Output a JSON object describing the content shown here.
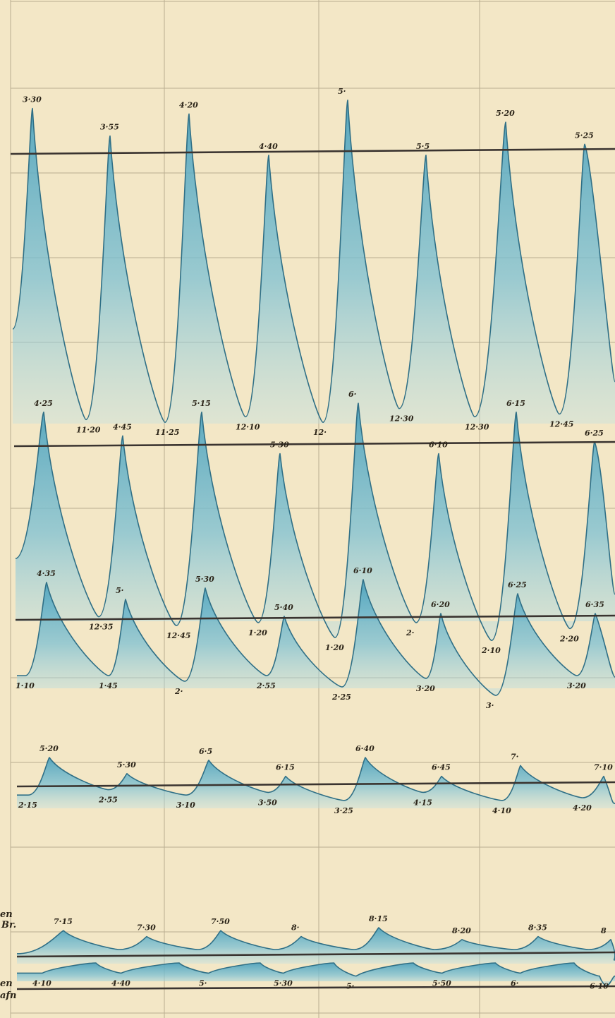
{
  "chart_data": {
    "type": "area",
    "title": "",
    "colors": {
      "paper": "#f3e7c6",
      "tide_fill": "#6fb7cb",
      "tide_edge": "#2f6f86",
      "datum_line": "#3a3430",
      "grid": "#b9ad90"
    },
    "grid": true,
    "time_unit": "h:mm (clock time of high and low water)",
    "x_range_hours": [
      0,
      8
    ],
    "series": [
      {
        "baseline_level": 0,
        "points": [
          {
            "kind": "high",
            "label": "3·30",
            "level": 0.16
          },
          {
            "kind": "low",
            "label": "11·20",
            "level": -0.97
          },
          {
            "kind": "high",
            "label": "3·55",
            "level": 0.06
          },
          {
            "kind": "low",
            "label": "11·25",
            "level": -0.98
          },
          {
            "kind": "high",
            "label": "4·20",
            "level": 0.14
          },
          {
            "kind": "low",
            "label": "12·10",
            "level": -0.96
          },
          {
            "kind": "high",
            "label": "4·40",
            "level": -0.01
          },
          {
            "kind": "low",
            "label": "12·",
            "level": -0.98
          },
          {
            "kind": "high",
            "label": "5·",
            "level": 0.19
          },
          {
            "kind": "low",
            "label": "12·30",
            "level": -0.93
          },
          {
            "kind": "high",
            "label": "5·5",
            "level": -0.01
          },
          {
            "kind": "low",
            "label": "12·30",
            "level": -0.96
          },
          {
            "kind": "high",
            "label": "5·20",
            "level": 0.11
          },
          {
            "kind": "low",
            "label": "12·45",
            "level": -0.95
          },
          {
            "kind": "high",
            "label": "5·25",
            "level": 0.03
          }
        ]
      },
      {
        "baseline_level": 0,
        "points": [
          {
            "kind": "high",
            "label": "4·25",
            "level": 0.11
          },
          {
            "kind": "low",
            "label": "12·35",
            "level": -0.58
          },
          {
            "kind": "high",
            "label": "4·45",
            "level": 0.03
          },
          {
            "kind": "low",
            "label": "12·45",
            "level": -0.61
          },
          {
            "kind": "high",
            "label": "5·15",
            "level": 0.11
          },
          {
            "kind": "low",
            "label": "1·20",
            "level": -0.6
          },
          {
            "kind": "high",
            "label": "5·30",
            "level": -0.03
          },
          {
            "kind": "low",
            "label": "1·20",
            "level": -0.65
          },
          {
            "kind": "high",
            "label": "6·",
            "level": 0.14
          },
          {
            "kind": "low",
            "label": "2·",
            "level": -0.6
          },
          {
            "kind": "high",
            "label": "6·10",
            "level": -0.03
          },
          {
            "kind": "low",
            "label": "2·10",
            "level": -0.66
          },
          {
            "kind": "high",
            "label": "6·15",
            "level": 0.11
          },
          {
            "kind": "low",
            "label": "2·20",
            "level": -0.62
          },
          {
            "kind": "high",
            "label": "6·25",
            "level": 0.01
          }
        ]
      },
      {
        "baseline_level": 0,
        "points": [
          {
            "kind": "low",
            "label": "1·10",
            "level": -0.2
          },
          {
            "kind": "high",
            "label": "4·35",
            "level": 0.13
          },
          {
            "kind": "low",
            "label": "1·45",
            "level": -0.2
          },
          {
            "kind": "high",
            "label": "5·",
            "level": 0.07
          },
          {
            "kind": "low",
            "label": "2·",
            "level": -0.22
          },
          {
            "kind": "high",
            "label": "5·30",
            "level": 0.11
          },
          {
            "kind": "low",
            "label": "2·55",
            "level": -0.2
          },
          {
            "kind": "high",
            "label": "5·40",
            "level": 0.01
          },
          {
            "kind": "low",
            "label": "2·25",
            "level": -0.24
          },
          {
            "kind": "high",
            "label": "6·10",
            "level": 0.14
          },
          {
            "kind": "low",
            "label": "3·20",
            "level": -0.21
          },
          {
            "kind": "high",
            "label": "6·20",
            "level": 0.02
          },
          {
            "kind": "low",
            "label": "3·",
            "level": -0.27
          },
          {
            "kind": "high",
            "label": "6·25",
            "level": 0.09
          },
          {
            "kind": "low",
            "label": "3·20",
            "level": -0.2
          },
          {
            "kind": "high",
            "label": "6·35",
            "level": 0.02
          }
        ]
      },
      {
        "baseline_level": 0,
        "points": [
          {
            "kind": "low",
            "label": "2·15",
            "level": -0.04
          },
          {
            "kind": "high",
            "label": "5·20",
            "level": 0.1
          },
          {
            "kind": "low",
            "label": "2·55",
            "level": -0.02
          },
          {
            "kind": "high",
            "label": "5·30",
            "level": 0.04
          },
          {
            "kind": "low",
            "label": "3·10",
            "level": -0.04
          },
          {
            "kind": "high",
            "label": "6·5",
            "level": 0.09
          },
          {
            "kind": "low",
            "label": "3·50",
            "level": -0.03
          },
          {
            "kind": "high",
            "label": "6·15",
            "level": 0.03
          },
          {
            "kind": "low",
            "label": "3·25",
            "level": -0.06
          },
          {
            "kind": "high",
            "label": "6·40",
            "level": 0.1
          },
          {
            "kind": "low",
            "label": "4·15",
            "level": -0.03
          },
          {
            "kind": "high",
            "label": "6·45",
            "level": 0.03
          },
          {
            "kind": "low",
            "label": "4·10",
            "level": -0.06
          },
          {
            "kind": "high",
            "label": "7·",
            "level": 0.07
          },
          {
            "kind": "low",
            "label": "4·20",
            "level": -0.05
          },
          {
            "kind": "high",
            "label": "7·10",
            "level": 0.03
          }
        ]
      },
      {
        "baseline_level": 0,
        "points": [
          {
            "kind": "high",
            "label": "7·15",
            "level": 0.04
          },
          {
            "kind": "high",
            "label": "7·30",
            "level": 0.02
          },
          {
            "kind": "high",
            "label": "7·50",
            "level": 0.04
          },
          {
            "kind": "high",
            "label": "8·",
            "level": 0.02
          },
          {
            "kind": "high",
            "label": "8·15",
            "level": 0.05
          },
          {
            "kind": "high",
            "label": "8·20",
            "level": 0.01
          },
          {
            "kind": "high",
            "label": "8·35",
            "level": 0.02
          },
          {
            "kind": "high",
            "label": "8",
            "level": 0.01
          }
        ]
      },
      {
        "baseline_level": 0,
        "points": [
          {
            "kind": "low",
            "label": "4·10",
            "level": -0.02
          },
          {
            "kind": "low",
            "label": "4·40",
            "level": -0.02
          },
          {
            "kind": "low",
            "label": "5·",
            "level": -0.02
          },
          {
            "kind": "low",
            "label": "5·30",
            "level": -0.02
          },
          {
            "kind": "low",
            "label": "5·",
            "level": -0.03
          },
          {
            "kind": "low",
            "label": "5·50",
            "level": -0.02
          },
          {
            "kind": "low",
            "label": "6·",
            "level": -0.02
          },
          {
            "kind": "low",
            "label": "6·10",
            "level": -0.03
          }
        ]
      }
    ],
    "margin_labels": [
      "en",
      "Br.",
      "en",
      "afn"
    ]
  }
}
